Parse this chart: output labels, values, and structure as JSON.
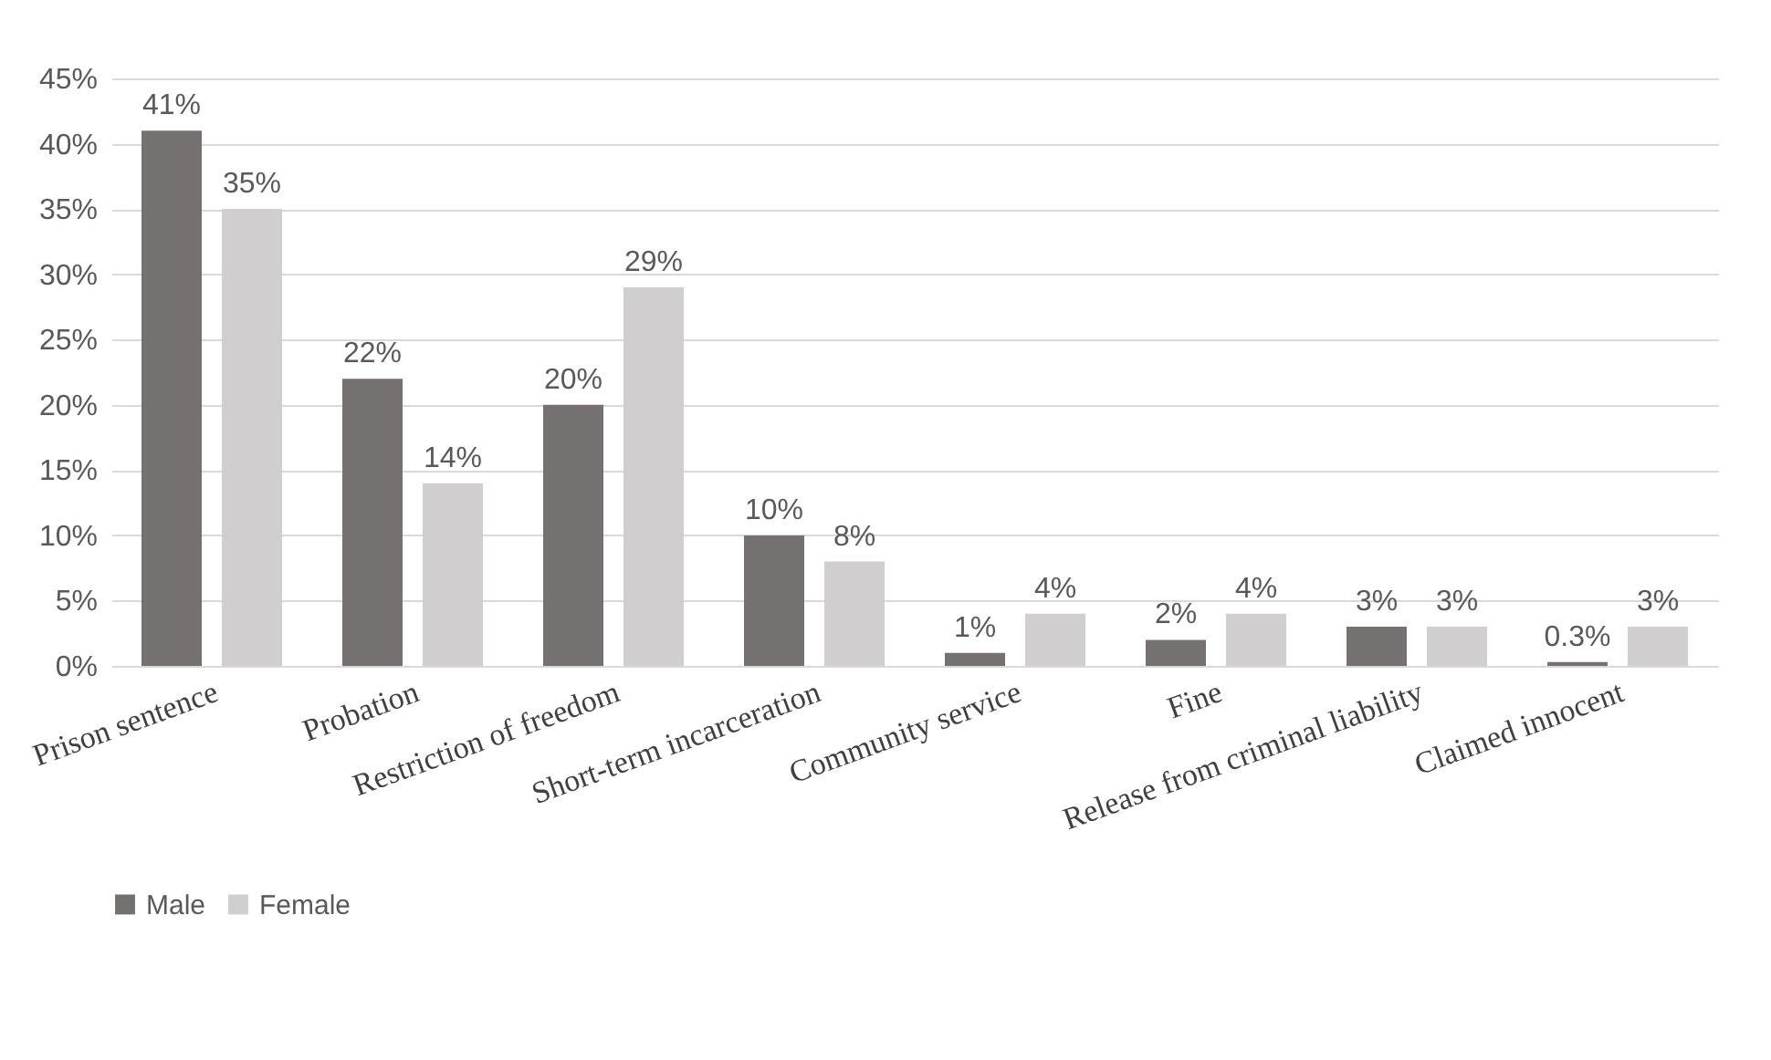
{
  "chart_data": {
    "type": "bar",
    "categories": [
      "Prison sentence",
      "Probation",
      "Restriction of freedom",
      "Short-term incarceration",
      "Community service",
      "Fine",
      "Release from criminal liability",
      "Claimed innocent"
    ],
    "series": [
      {
        "name": "Male",
        "color": "#767171",
        "values": [
          41,
          22,
          20,
          10,
          1,
          2,
          3,
          0.3
        ],
        "value_labels": [
          "41%",
          "22%",
          "20%",
          "10%",
          "1%",
          "2%",
          "3%",
          "0.3%"
        ]
      },
      {
        "name": "Female",
        "color": "#d0cece",
        "values": [
          35,
          14,
          29,
          8,
          4,
          4,
          3,
          3
        ],
        "value_labels": [
          "35%",
          "14%",
          "29%",
          "8%",
          "4%",
          "4%",
          "3%",
          "3%"
        ]
      }
    ],
    "ylim": [
      0,
      45
    ],
    "yticks": [
      {
        "value": 0,
        "label": "0%"
      },
      {
        "value": 5,
        "label": "5%"
      },
      {
        "value": 10,
        "label": "10%"
      },
      {
        "value": 15,
        "label": "15%"
      },
      {
        "value": 20,
        "label": "20%"
      },
      {
        "value": 25,
        "label": "25%"
      },
      {
        "value": 30,
        "label": "30%"
      },
      {
        "value": 35,
        "label": "35%"
      },
      {
        "value": 40,
        "label": "40%"
      },
      {
        "value": 45,
        "label": "45%"
      }
    ],
    "grid": "y",
    "legend": "bottom"
  }
}
